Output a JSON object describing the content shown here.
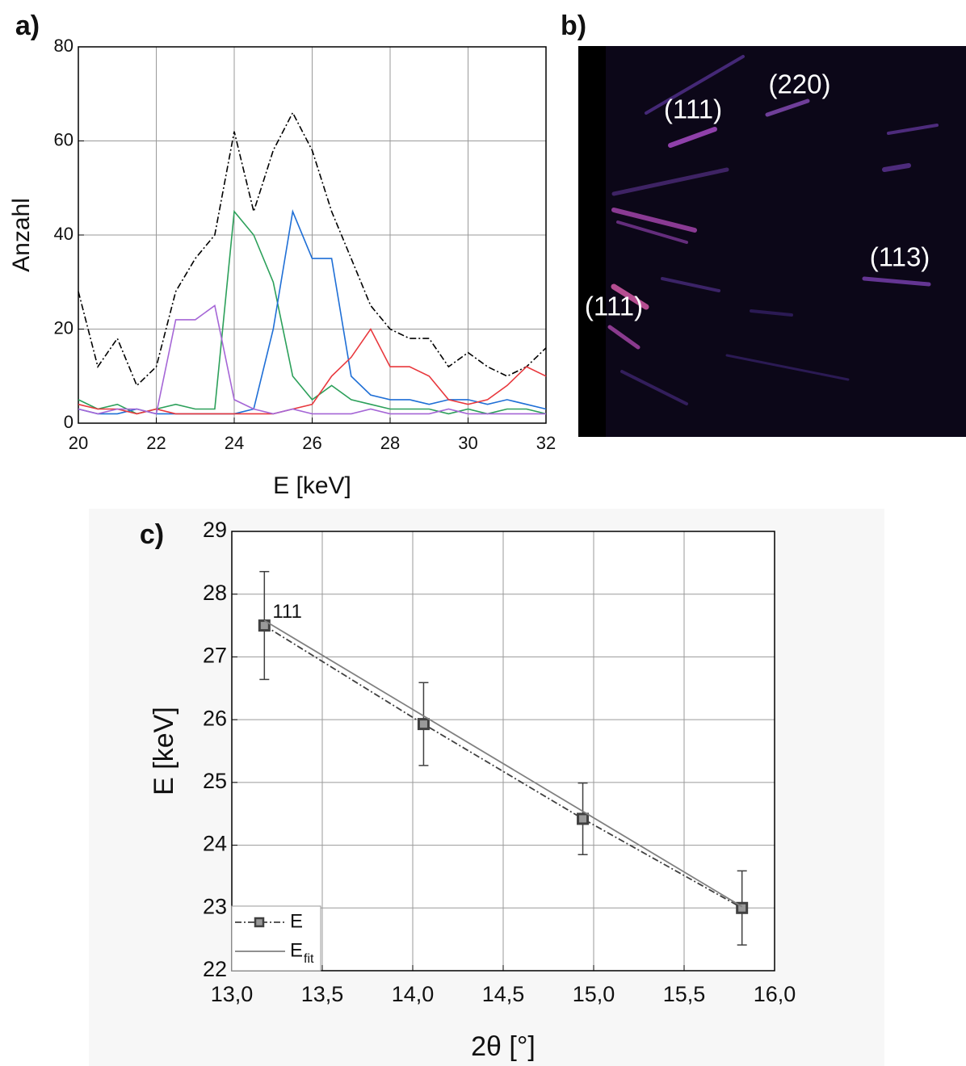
{
  "chart_data": [
    {
      "type": "line",
      "label": "a)",
      "xlabel": "E [keV]",
      "ylabel": "Anzahl",
      "x": [
        20,
        20.5,
        21,
        21.5,
        22,
        22.5,
        23,
        23.5,
        24,
        24.5,
        25,
        25.5,
        26,
        26.5,
        27,
        27.5,
        28,
        28.5,
        29,
        29.5,
        30,
        30.5,
        31,
        31.5,
        32
      ],
      "series": [
        {
          "color": "#000000",
          "linestyle": "dashdot",
          "values": [
            28,
            12,
            18,
            8,
            12,
            28,
            35,
            40,
            62,
            45,
            58,
            66,
            58,
            45,
            35,
            25,
            20,
            18,
            18,
            12,
            15,
            12,
            10,
            12,
            16
          ]
        },
        {
          "color": "#2ca05a",
          "linestyle": "solid",
          "values": [
            5,
            3,
            4,
            2,
            3,
            4,
            3,
            3,
            45,
            40,
            30,
            10,
            5,
            8,
            5,
            4,
            3,
            3,
            3,
            2,
            3,
            2,
            3,
            3,
            2
          ]
        },
        {
          "color": "#1f6fd6",
          "linestyle": "solid",
          "values": [
            3,
            2,
            2,
            3,
            2,
            2,
            2,
            2,
            2,
            3,
            20,
            45,
            35,
            35,
            10,
            6,
            5,
            5,
            4,
            5,
            5,
            4,
            5,
            4,
            3
          ]
        },
        {
          "color": "#e8383d",
          "linestyle": "solid",
          "values": [
            4,
            3,
            3,
            2,
            3,
            2,
            2,
            2,
            2,
            2,
            2,
            3,
            4,
            10,
            14,
            20,
            12,
            12,
            10,
            5,
            4,
            5,
            8,
            12,
            10
          ]
        },
        {
          "color": "#a566d6",
          "linestyle": "solid",
          "values": [
            3,
            2,
            3,
            3,
            2,
            22,
            22,
            25,
            5,
            3,
            2,
            3,
            2,
            2,
            2,
            3,
            2,
            2,
            2,
            3,
            2,
            2,
            2,
            2,
            2
          ]
        }
      ],
      "xlim": [
        20,
        32
      ],
      "xticks": [
        20,
        22,
        24,
        26,
        28,
        30,
        32
      ],
      "ylim": [
        0,
        80
      ],
      "yticks": [
        0,
        20,
        40,
        60,
        80
      ],
      "grid": true
    },
    {
      "type": "image",
      "label": "b)",
      "annotations": [
        "(220)",
        "(111)",
        "(113)",
        "(111)"
      ]
    },
    {
      "type": "scatter",
      "label": "c)",
      "xlabel": "2θ [°]",
      "ylabel": "E [keV]",
      "series": [
        {
          "name": "E",
          "color": "#404040",
          "linestyle": "dashdot",
          "marker": "square",
          "x": [
            13.18,
            14.06,
            14.94,
            15.82
          ],
          "values": [
            27.5,
            25.93,
            24.42,
            23.0
          ],
          "errors": [
            0.86,
            0.66,
            0.57,
            0.59
          ]
        },
        {
          "name": "E",
          "subscript": "fit",
          "color": "#808080",
          "linestyle": "solid",
          "x": [
            13.18,
            15.82
          ],
          "values": [
            27.58,
            23.02
          ]
        }
      ],
      "annotations": [
        "111"
      ],
      "xlim": [
        13,
        16
      ],
      "xticks": [
        {
          "value": 13,
          "label": "13,0"
        },
        {
          "value": 13.5,
          "label": "13,5"
        },
        {
          "value": 14,
          "label": "14,0"
        },
        {
          "value": 14.5,
          "label": "14,5"
        },
        {
          "value": 15,
          "label": "15,0"
        },
        {
          "value": 15.5,
          "label": "15,5"
        },
        {
          "value": 16,
          "label": "16,0"
        }
      ],
      "ylim": [
        22,
        29
      ],
      "yticks": [
        22,
        23,
        24,
        25,
        26,
        27,
        28,
        29
      ],
      "grid": true,
      "legend": "lower left"
    }
  ]
}
